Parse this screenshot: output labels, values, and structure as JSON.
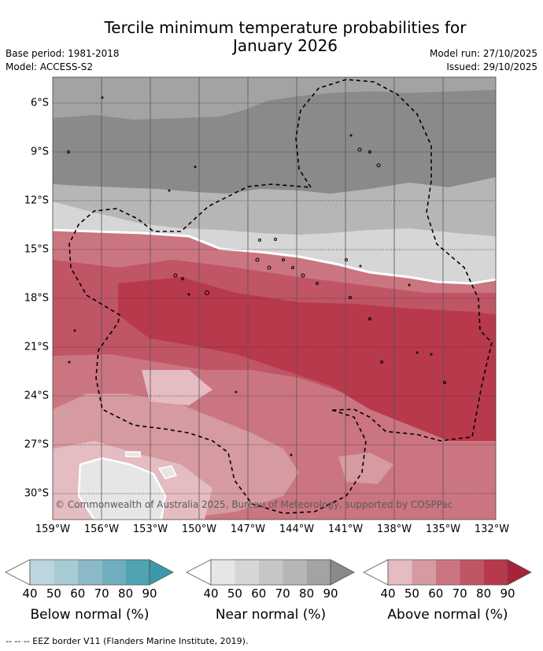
{
  "header": {
    "title_line1": "Tercile minimum temperature probabilities for",
    "title_line2": "January 2026",
    "base_period": "Base period: 1981-2018",
    "model": "Model: ACCESS-S2",
    "model_run": "Model run: 27/10/2025",
    "issued": "Issued: 29/10/2025"
  },
  "map": {
    "lon_ticks": [
      "159°W",
      "156°W",
      "153°W",
      "150°W",
      "147°W",
      "144°W",
      "141°W",
      "138°W",
      "135°W",
      "132°W"
    ],
    "lat_ticks": [
      "6°S",
      "9°S",
      "12°S",
      "15°S",
      "18°S",
      "21°S",
      "24°S",
      "27°S",
      "30°S"
    ],
    "copyright": "© Commonwealth of Australia 2025, Bureau of Meteorology, supported by COSPPac"
  },
  "legend": {
    "below": {
      "title": "Below normal (%)",
      "ticks": [
        "40",
        "50",
        "60",
        "70",
        "80",
        "90"
      ],
      "colors": [
        "#bdd5dc",
        "#a8cbd3",
        "#8bbac6",
        "#70aebd",
        "#4fa3b3",
        "#3a9aab"
      ]
    },
    "near": {
      "title": "Near normal (%)",
      "ticks": [
        "40",
        "50",
        "60",
        "70",
        "80",
        "90"
      ],
      "colors": [
        "#e6e6e6",
        "#d6d6d6",
        "#c6c6c6",
        "#b6b6b6",
        "#a3a3a3",
        "#8a8a8a"
      ]
    },
    "above": {
      "title": "Above normal (%)",
      "ticks": [
        "40",
        "50",
        "60",
        "70",
        "80",
        "90"
      ],
      "colors": [
        "#e4bcc2",
        "#d69aa1",
        "#cb7580",
        "#c05565",
        "#b8384c",
        "#a8223a"
      ]
    }
  },
  "footer": {
    "eez_note": "--  --  -- EEZ border V11 (Flanders Marine Institute, 2019)."
  }
}
